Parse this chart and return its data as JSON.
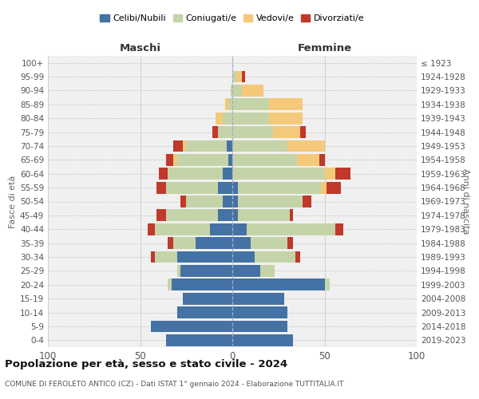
{
  "age_groups": [
    "0-4",
    "5-9",
    "10-14",
    "15-19",
    "20-24",
    "25-29",
    "30-34",
    "35-39",
    "40-44",
    "45-49",
    "50-54",
    "55-59",
    "60-64",
    "65-69",
    "70-74",
    "75-79",
    "80-84",
    "85-89",
    "90-94",
    "95-99",
    "100+"
  ],
  "birth_years": [
    "2019-2023",
    "2014-2018",
    "2009-2013",
    "2004-2008",
    "1999-2003",
    "1994-1998",
    "1989-1993",
    "1984-1988",
    "1979-1983",
    "1974-1978",
    "1969-1973",
    "1964-1968",
    "1959-1963",
    "1954-1958",
    "1949-1953",
    "1944-1948",
    "1939-1943",
    "1934-1938",
    "1929-1933",
    "1924-1928",
    "≤ 1923"
  ],
  "males": {
    "celibe": [
      36,
      44,
      30,
      27,
      33,
      28,
      30,
      20,
      12,
      8,
      5,
      8,
      5,
      2,
      3,
      0,
      0,
      0,
      0,
      0,
      0
    ],
    "coniugato": [
      0,
      0,
      0,
      0,
      2,
      2,
      12,
      12,
      30,
      28,
      20,
      28,
      30,
      28,
      22,
      8,
      5,
      2,
      1,
      0,
      0
    ],
    "vedovo": [
      0,
      0,
      0,
      0,
      0,
      0,
      0,
      0,
      0,
      0,
      0,
      0,
      0,
      2,
      2,
      0,
      4,
      2,
      0,
      0,
      0
    ],
    "divorziato": [
      0,
      0,
      0,
      0,
      0,
      0,
      2,
      3,
      4,
      5,
      3,
      5,
      5,
      4,
      5,
      3,
      0,
      0,
      0,
      0,
      0
    ]
  },
  "females": {
    "nubile": [
      33,
      30,
      30,
      28,
      50,
      15,
      12,
      10,
      8,
      3,
      3,
      3,
      0,
      0,
      0,
      0,
      0,
      0,
      0,
      0,
      0
    ],
    "coniugata": [
      0,
      0,
      0,
      0,
      3,
      8,
      22,
      20,
      48,
      28,
      35,
      45,
      50,
      35,
      30,
      22,
      20,
      20,
      5,
      2,
      0
    ],
    "vedova": [
      0,
      0,
      0,
      0,
      0,
      0,
      0,
      0,
      0,
      0,
      0,
      3,
      6,
      12,
      20,
      15,
      18,
      18,
      12,
      3,
      0
    ],
    "divorziata": [
      0,
      0,
      0,
      0,
      0,
      0,
      3,
      3,
      4,
      2,
      5,
      8,
      8,
      3,
      0,
      3,
      0,
      0,
      0,
      2,
      0
    ]
  },
  "colors": {
    "celibe": "#4472a4",
    "coniugato": "#c5d4a8",
    "vedovo": "#f5c97a",
    "divorziato": "#c0392b"
  },
  "xlim": 100,
  "xtick_step": 50,
  "title": "Popolazione per età, sesso e stato civile - 2024",
  "subtitle": "COMUNE DI FEROLETO ANTICO (CZ) - Dati ISTAT 1° gennaio 2024 - Elaborazione TUTTITALIA.IT",
  "xlabel_left": "Maschi",
  "xlabel_right": "Femmine",
  "ylabel_left": "Fasce di età",
  "ylabel_right": "Anni di nascita",
  "legend_labels": [
    "Celibi/Nubili",
    "Coniugati/e",
    "Vedovi/e",
    "Divorziati/e"
  ],
  "bg_color": "#f0f0f0",
  "grid_color": "#cccccc"
}
